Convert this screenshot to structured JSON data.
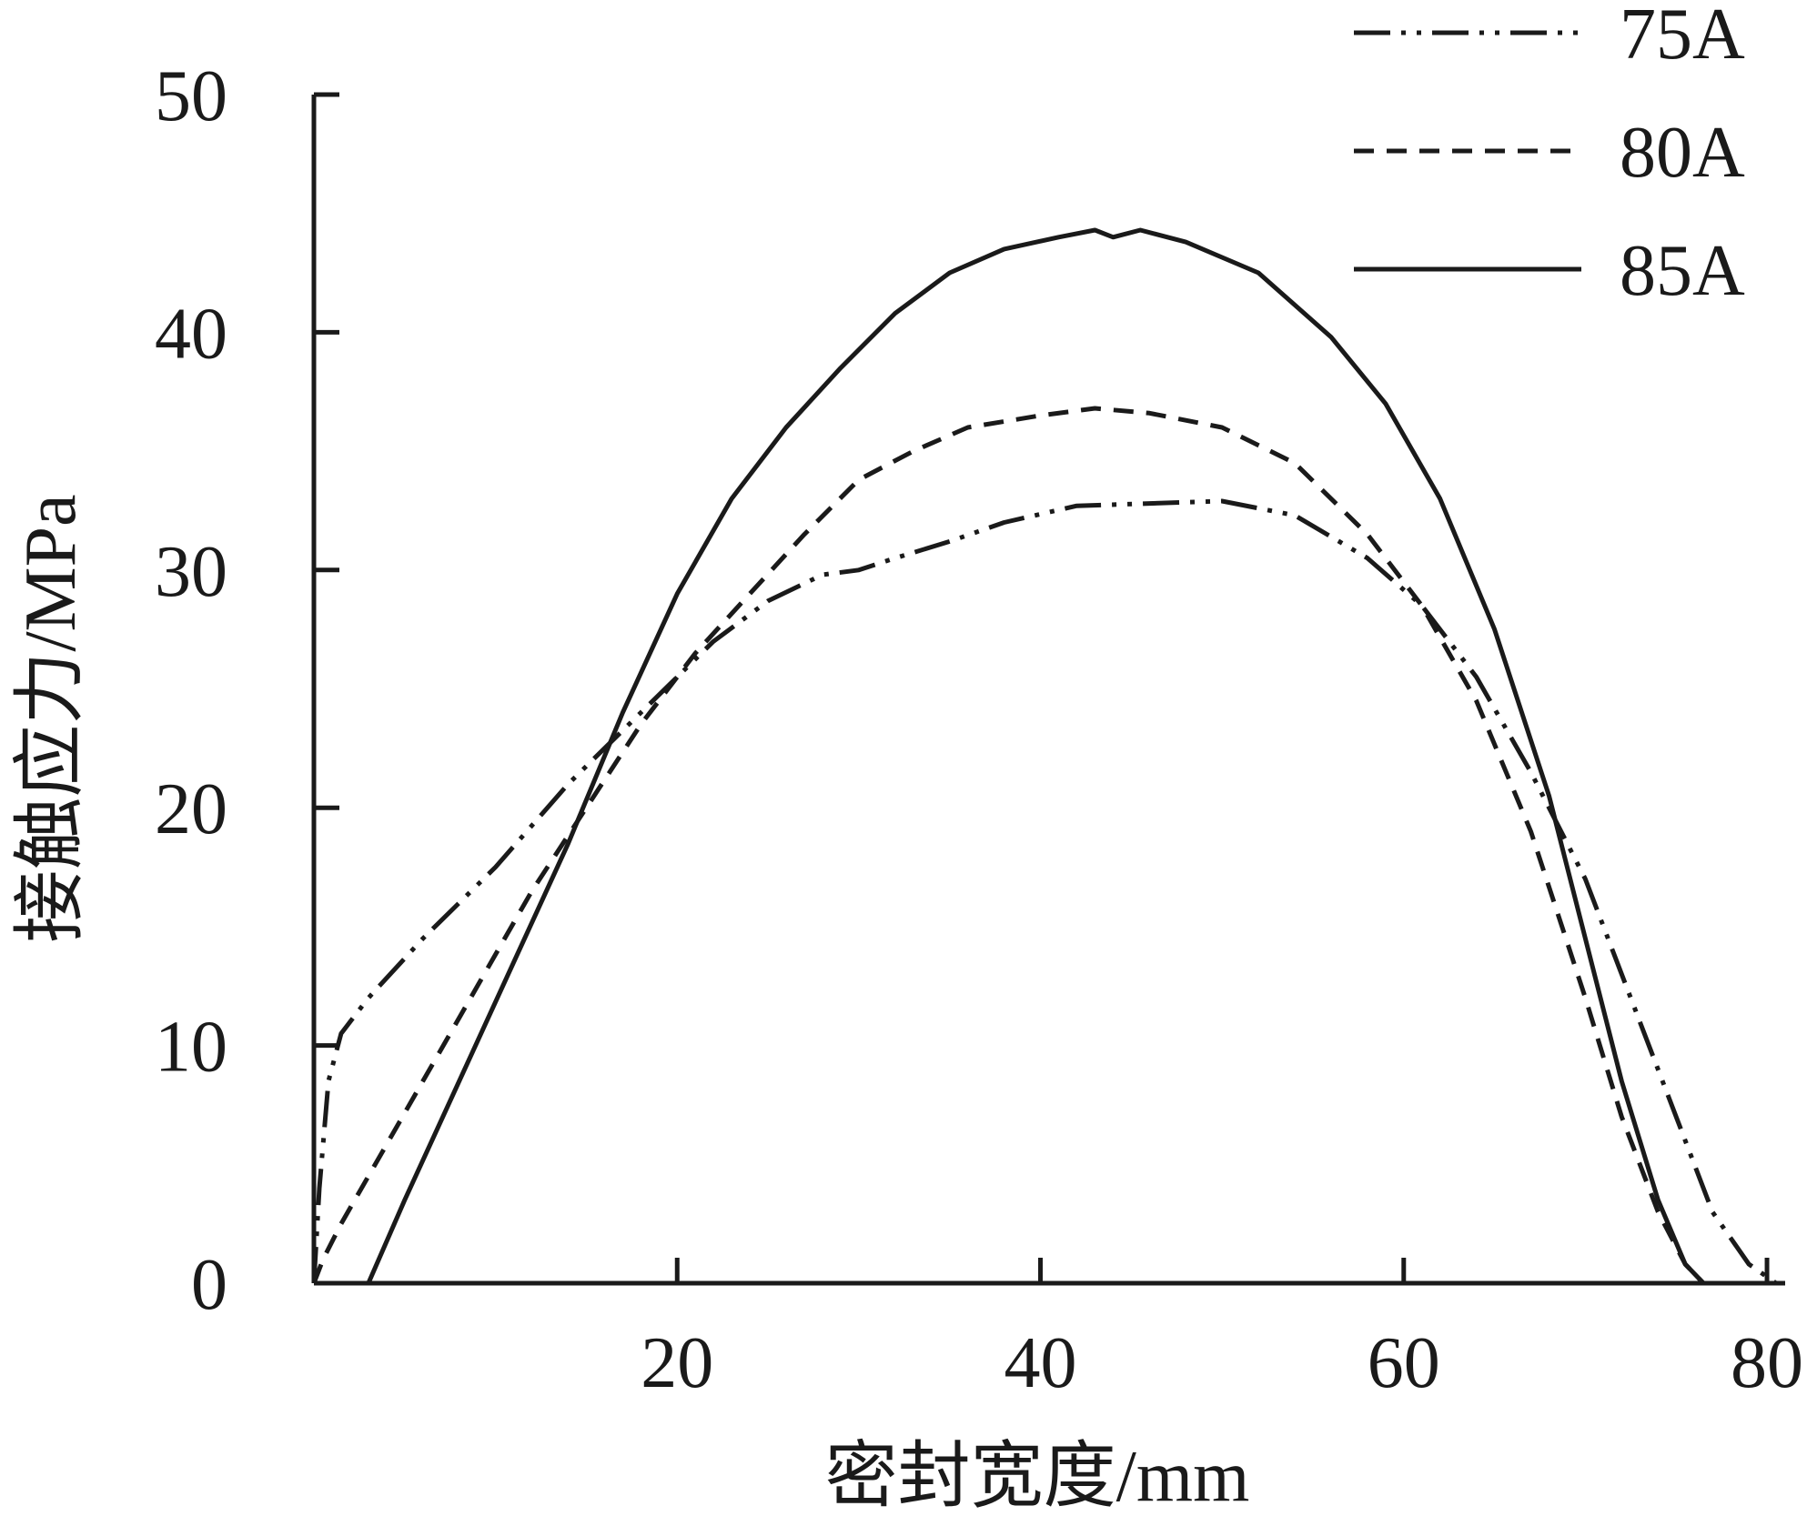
{
  "chart_data": {
    "type": "line",
    "title": "",
    "xlabel": "密封宽度/mm",
    "ylabel": "接触应力/MPa",
    "xlim": [
      0,
      81
    ],
    "ylim": [
      0,
      50
    ],
    "xticks": [
      20,
      40,
      60,
      80
    ],
    "yticks": [
      0,
      10,
      20,
      30,
      40,
      50
    ],
    "grid": false,
    "legend_position": "top-right",
    "series": [
      {
        "name": "75A",
        "style": "dash-dot-dot",
        "x": [
          0.0,
          0.3,
          0.8,
          1.5,
          3.0,
          6.0,
          10.0,
          14.0,
          18.0,
          20.0,
          22.0,
          25.0,
          28.0,
          30.0,
          32.0,
          35.0,
          38.0,
          42.0,
          46.0,
          50.0,
          54.0,
          58.0,
          61.0,
          64.0,
          67.0,
          70.0,
          72.0,
          75.0,
          77.0,
          79.0,
          80.5
        ],
        "y": [
          0.0,
          4.0,
          8.5,
          10.5,
          12.0,
          14.5,
          17.5,
          21.0,
          24.0,
          25.5,
          27.0,
          28.7,
          29.8,
          30.0,
          30.5,
          31.2,
          32.0,
          32.7,
          32.8,
          32.9,
          32.3,
          30.5,
          28.5,
          25.5,
          21.5,
          17.0,
          13.0,
          7.0,
          3.0,
          0.8,
          0.0
        ]
      },
      {
        "name": "80A",
        "style": "dashed",
        "x": [
          0.0,
          0.5,
          1.5,
          3.0,
          6.0,
          9.0,
          12.0,
          15.0,
          18.0,
          21.0,
          24.0,
          27.0,
          30.0,
          33.0,
          36.0,
          40.0,
          43.0,
          46.0,
          50.0,
          54.0,
          58.0,
          61.0,
          64.0,
          67.0,
          70.0,
          72.0,
          74.0,
          75.5,
          76.5
        ],
        "y": [
          0.0,
          1.0,
          2.5,
          4.5,
          8.5,
          12.5,
          16.5,
          20.0,
          23.5,
          26.5,
          29.0,
          31.5,
          33.8,
          35.0,
          36.0,
          36.5,
          36.8,
          36.6,
          36.0,
          34.5,
          31.5,
          28.5,
          24.5,
          19.0,
          12.0,
          7.0,
          3.0,
          0.8,
          0.0
        ]
      },
      {
        "name": "85A",
        "style": "solid",
        "x": [
          3.0,
          5.0,
          8.0,
          11.0,
          14.0,
          17.0,
          20.0,
          23.0,
          26.0,
          29.0,
          32.0,
          35.0,
          38.0,
          41.0,
          43.0,
          44.0,
          45.5,
          48.0,
          52.0,
          56.0,
          59.0,
          62.0,
          65.0,
          68.0,
          70.0,
          72.0,
          74.0,
          75.5,
          76.5
        ],
        "y": [
          0.0,
          3.5,
          8.5,
          13.5,
          18.5,
          24.0,
          29.0,
          33.0,
          36.0,
          38.5,
          40.8,
          42.5,
          43.5,
          44.0,
          44.3,
          44.0,
          44.3,
          43.8,
          42.5,
          39.8,
          37.0,
          33.0,
          27.5,
          20.5,
          14.5,
          8.5,
          3.5,
          0.8,
          0.0
        ]
      }
    ]
  }
}
